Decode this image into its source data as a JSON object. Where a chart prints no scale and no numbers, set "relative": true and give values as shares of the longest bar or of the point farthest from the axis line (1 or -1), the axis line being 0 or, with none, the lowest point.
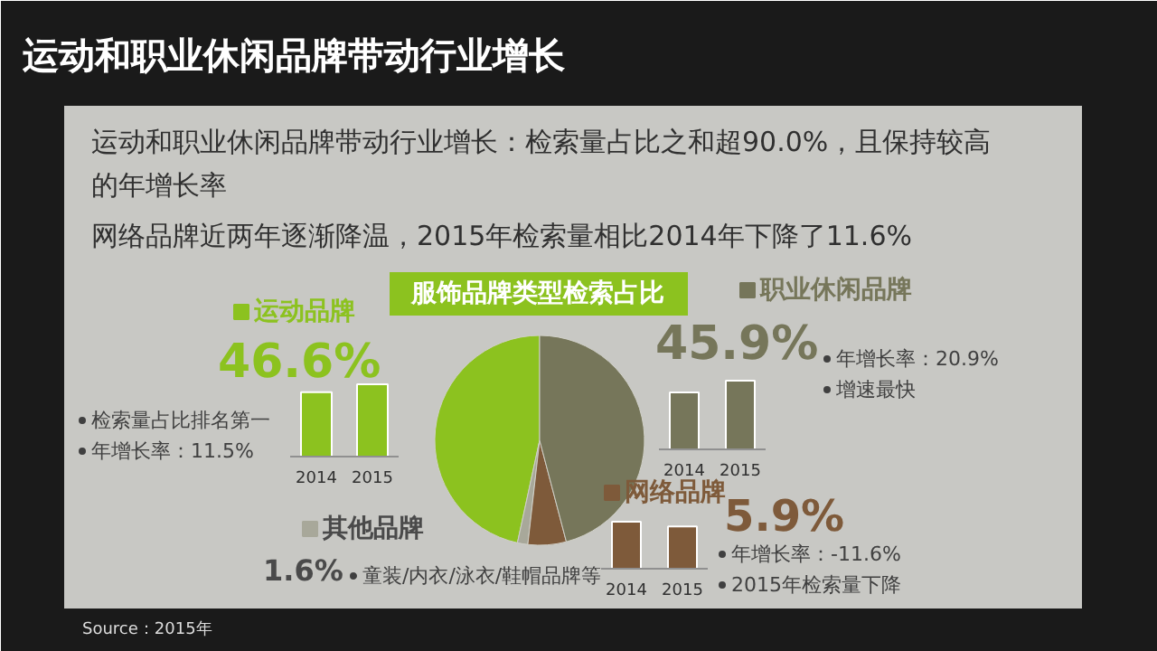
{
  "chart_data": [
    {
      "type": "pie",
      "title": "服饰品牌类型检索占比",
      "categories": [
        "运动品牌",
        "其他品牌",
        "网络品牌",
        "职业休闲品牌"
      ],
      "values": [
        46.6,
        1.6,
        5.9,
        45.9
      ],
      "colors": [
        "#8cc21f",
        "#a8a89a",
        "#7e5a3a",
        "#76765a"
      ],
      "value_labels": [
        "46.6%",
        "1.6%",
        "5.9%",
        "45.9%"
      ],
      "legend": "top",
      "annotations": [
        "运动和职业休闲品牌带动行业增长",
        "运动和职业休闲品牌带动行业增长：检索量占比之和超90.0%，且保持较高的年增长率",
        "网络品牌近两年逐渐降温，2015年检索量相比2014年下降了11.6%",
        "检索量占比排名第一",
        "年增长率：11.5%",
        "年增长率：20.9%",
        "增速最快",
        "童装/内衣/泳衣/鞋帽品牌等",
        "年增长率：-11.6%",
        "2015年检索量下降",
        "Source：2015年"
      ]
    },
    {
      "type": "bar",
      "categories": [
        "2014",
        "2015"
      ],
      "values": [
        0.89,
        1
      ],
      "color": "#8cc21f",
      "relative": true
    },
    {
      "type": "bar",
      "categories": [
        "2014",
        "2015"
      ],
      "values": [
        0.83,
        1
      ],
      "color": "#76765a",
      "relative": true
    },
    {
      "type": "bar",
      "categories": [
        "2014",
        "2015"
      ],
      "values": [
        1,
        0.9
      ],
      "color": "#7e5a3a",
      "relative": true
    }
  ]
}
